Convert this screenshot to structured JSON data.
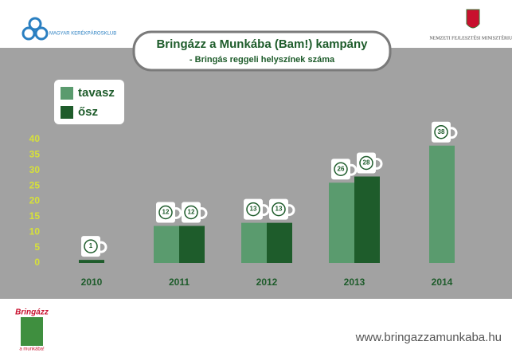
{
  "chart_data": {
    "type": "bar",
    "title": "Bringázz a Munkába (Bam!) kampány",
    "subtitle": "- Bringás reggeli helyszínek száma",
    "categories": [
      "2010",
      "2011",
      "2012",
      "2013",
      "2014"
    ],
    "series": [
      {
        "name": "tavasz",
        "color": "#5a9b6e",
        "values": [
          null,
          12,
          13,
          26,
          38
        ]
      },
      {
        "name": "ősz",
        "color": "#1e5c2b",
        "values": [
          1,
          12,
          13,
          28,
          null
        ]
      }
    ],
    "ylim": [
      0,
      40
    ],
    "yticks": [
      0,
      5,
      10,
      15,
      20,
      25,
      30,
      35,
      40
    ],
    "legend": "top-left"
  },
  "header": {
    "left_logo": "MAGYAR KERÉKPÁROSKLUB",
    "right_logo": "NEMZETI FEJLESZTÉSI MINISZTÉRIUM"
  },
  "footer": {
    "logo_top": "Bringázz",
    "logo_bottom": "a munkába!",
    "website": "www.bringazzamunkaba.hu"
  }
}
